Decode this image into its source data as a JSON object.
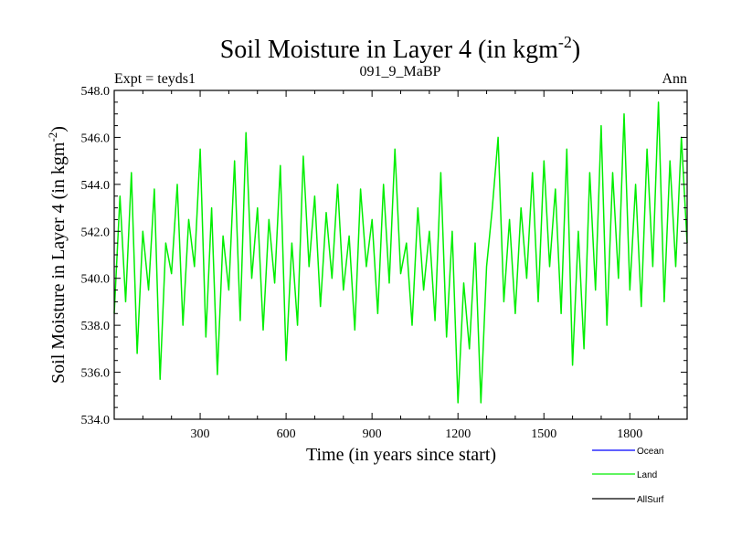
{
  "chart_data": {
    "type": "line",
    "title": "Soil Moisture in Layer 4 (in kgm",
    "title_sup": "-2",
    "title_close": ")",
    "subtitle_left": "Expt = teyds1",
    "subtitle_center": "091_9_MaBP",
    "subtitle_right": "Ann",
    "ylabel": "Soil Moisture in Layer 4 (in kgm",
    "ylabel_sup": "-2",
    "ylabel_close": ")",
    "xlabel": "Time (in years since start)",
    "xlim": [
      0,
      2000
    ],
    "ylim": [
      534.0,
      548.0
    ],
    "x_ticks": [
      300,
      600,
      900,
      1200,
      1500,
      1800
    ],
    "x_tick_labels": [
      "300",
      "600",
      "900",
      "1200",
      "1500",
      "1800"
    ],
    "y_ticks": [
      534,
      536,
      538,
      540,
      542,
      544,
      546,
      548
    ],
    "y_tick_labels": [
      "534.0",
      "536.0",
      "538.0",
      "540.0",
      "542.0",
      "544.0",
      "546.0",
      "548.0"
    ],
    "series": [
      {
        "name": "Land",
        "color": "#00ee00",
        "x": [
          0,
          20,
          40,
          60,
          80,
          100,
          120,
          140,
          160,
          180,
          200,
          220,
          240,
          260,
          280,
          300,
          320,
          340,
          360,
          380,
          400,
          420,
          440,
          460,
          480,
          500,
          520,
          540,
          560,
          580,
          600,
          620,
          640,
          660,
          680,
          700,
          720,
          740,
          760,
          780,
          800,
          820,
          840,
          860,
          880,
          900,
          920,
          940,
          960,
          980,
          1000,
          1020,
          1040,
          1060,
          1080,
          1100,
          1120,
          1140,
          1160,
          1180,
          1200,
          1220,
          1240,
          1260,
          1280,
          1300,
          1320,
          1340,
          1360,
          1380,
          1400,
          1420,
          1440,
          1460,
          1480,
          1500,
          1520,
          1540,
          1560,
          1580,
          1600,
          1620,
          1640,
          1660,
          1680,
          1700,
          1720,
          1740,
          1760,
          1780,
          1800,
          1820,
          1840,
          1860,
          1880,
          1900,
          1920,
          1940,
          1960,
          1980,
          2000
        ],
        "values": [
          538.5,
          543.5,
          539.0,
          544.5,
          536.8,
          542.0,
          539.5,
          543.8,
          535.7,
          541.5,
          540.2,
          544.0,
          538.0,
          542.5,
          540.5,
          545.5,
          537.5,
          543.0,
          535.9,
          541.8,
          539.5,
          545.0,
          538.2,
          546.2,
          540.0,
          543.0,
          537.8,
          542.5,
          539.8,
          544.8,
          536.5,
          541.5,
          538.0,
          545.2,
          540.5,
          543.5,
          538.8,
          542.8,
          540.0,
          544.0,
          539.5,
          541.8,
          537.8,
          543.8,
          540.5,
          542.5,
          538.5,
          544.0,
          539.8,
          545.5,
          540.2,
          541.5,
          538.0,
          543.0,
          539.5,
          542.0,
          538.2,
          544.5,
          537.5,
          542.0,
          534.7,
          539.8,
          537.0,
          541.5,
          534.7,
          540.5,
          543.0,
          546.0,
          539.0,
          542.5,
          538.5,
          543.0,
          540.0,
          544.5,
          539.0,
          545.0,
          540.5,
          543.8,
          538.5,
          545.5,
          536.3,
          542.0,
          537.0,
          544.5,
          539.5,
          546.5,
          538.0,
          544.5,
          540.0,
          547.0,
          539.5,
          544.0,
          538.8,
          545.5,
          540.5,
          547.5,
          539.0,
          545.0,
          540.5,
          546.0,
          541.5
        ]
      }
    ],
    "legend": {
      "placement": "bottom-right",
      "entries": [
        {
          "label": "Ocean",
          "color": "#0000ff"
        },
        {
          "label": "Land",
          "color": "#00ee00"
        },
        {
          "label": "AllSurf",
          "color": "#000000"
        }
      ]
    }
  }
}
